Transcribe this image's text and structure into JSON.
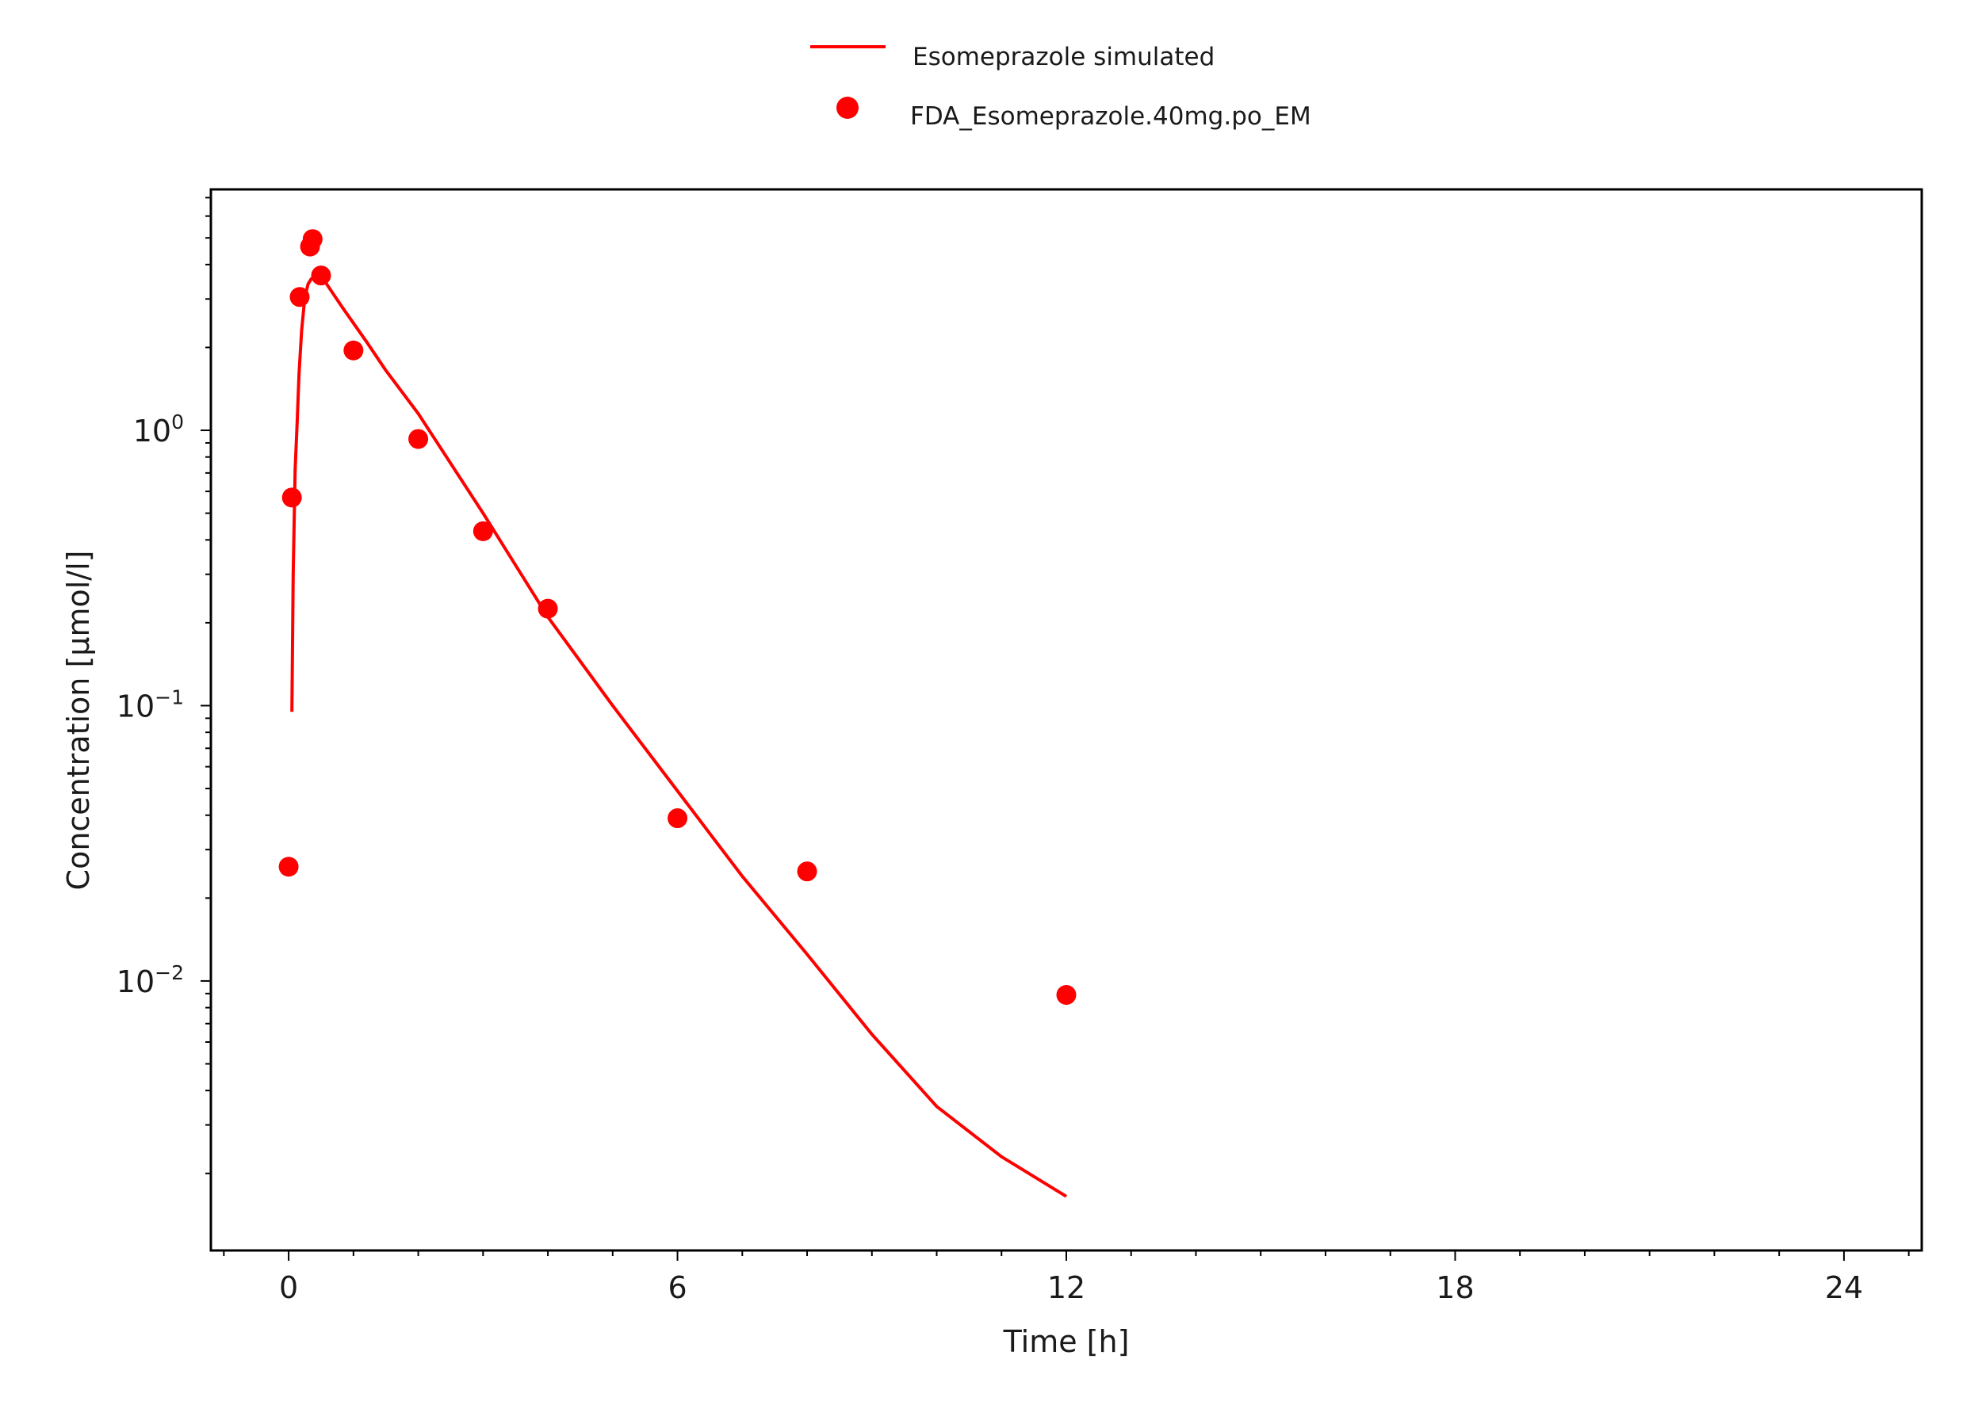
{
  "chart_data": {
    "type": "line",
    "xlabel": "Time [h]",
    "ylabel": "Concentration [µmol/l]",
    "xlim": [
      -1.2,
      25.2
    ],
    "ylim": [
      0.00105,
      7.5
    ],
    "yscale": "log",
    "x_ticks": [
      {
        "value": 0,
        "label": "0"
      },
      {
        "value": 6,
        "label": "6"
      },
      {
        "value": 12,
        "label": "12"
      },
      {
        "value": 18,
        "label": "18"
      },
      {
        "value": 24,
        "label": "24"
      }
    ],
    "y_ticks": [
      {
        "value": 1,
        "base": "10",
        "exp": "0"
      },
      {
        "value": 0.1,
        "base": "10",
        "exp": "−1"
      },
      {
        "value": 0.01,
        "base": "10",
        "exp": "−2"
      }
    ],
    "series": [
      {
        "name": "Esomeprazole simulated",
        "kind": "line",
        "color": "#ff0000",
        "x": [
          0.05,
          0.07,
          0.1,
          0.13,
          0.16,
          0.2,
          0.25,
          0.3,
          0.35,
          0.45,
          0.55,
          0.7,
          0.85,
          1.0,
          1.2,
          1.5,
          2.0,
          3.0,
          4.0,
          5.0,
          6.0,
          7.0,
          8.0,
          9.0,
          10.0,
          11.0,
          12.0
        ],
        "y": [
          0.095,
          0.3,
          0.72,
          1.05,
          1.6,
          2.3,
          3.05,
          3.4,
          3.55,
          3.65,
          3.5,
          3.1,
          2.75,
          2.45,
          2.1,
          1.65,
          1.15,
          0.5,
          0.21,
          0.1,
          0.049,
          0.024,
          0.0125,
          0.0064,
          0.0035,
          0.0023,
          0.00165
        ]
      },
      {
        "name": "FDA_Esomeprazole.40mg.po_EM",
        "kind": "scatter",
        "color": "#ff0000",
        "x": [
          0.0,
          0.05,
          0.17,
          0.33,
          0.37,
          0.5,
          1.0,
          2.0,
          3.0,
          4.0,
          6.0,
          8.0,
          12.0
        ],
        "y": [
          0.026,
          0.57,
          3.05,
          4.65,
          4.95,
          3.65,
          1.95,
          0.93,
          0.43,
          0.225,
          0.039,
          0.025,
          0.0089
        ]
      }
    ]
  }
}
